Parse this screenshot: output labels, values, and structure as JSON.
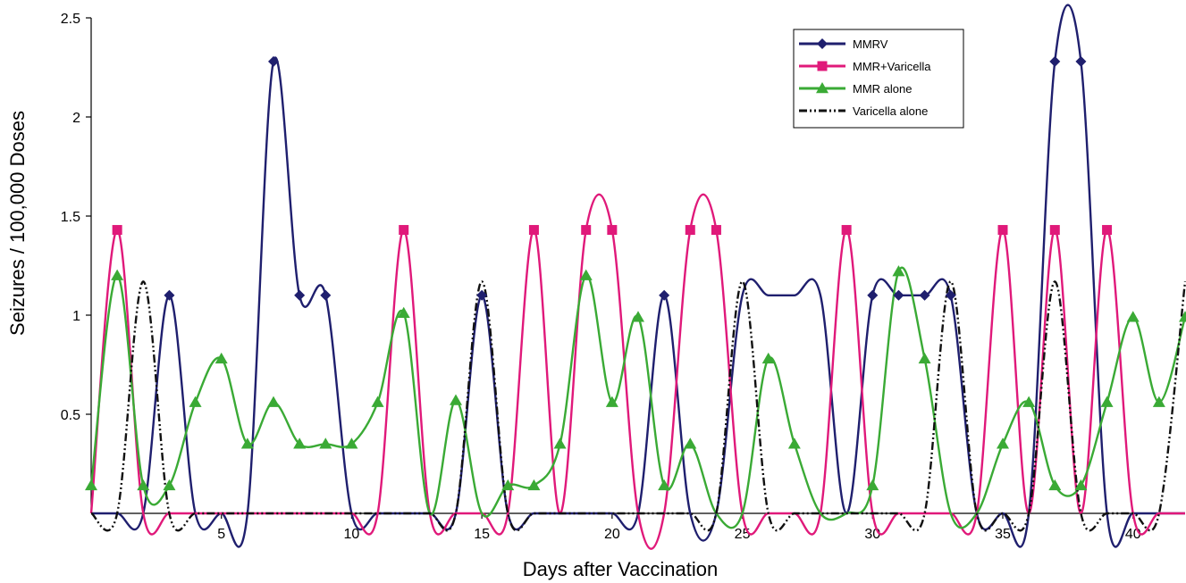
{
  "chart_data": {
    "type": "line",
    "title": "",
    "xlabel": "Days after Vaccination",
    "ylabel": "Seizures / 100,000 Doses",
    "xlim": [
      0,
      42
    ],
    "ylim": [
      0,
      2.5
    ],
    "x_ticks": [
      5,
      10,
      15,
      20,
      25,
      30,
      35,
      40
    ],
    "x_tick_labels": [
      "5",
      "10",
      "15",
      "20",
      "25",
      "30",
      "35",
      "40"
    ],
    "y_ticks": [
      0.5,
      1,
      1.5,
      2,
      2.5
    ],
    "y_tick_labels": [
      "0.5",
      "1",
      "1.5",
      "2",
      "2.5"
    ],
    "grid": false,
    "legend_position": "top-right",
    "series": [
      {
        "name": "MMRV",
        "color": "#1f1f6e",
        "marker": "diamond",
        "x": [
          0,
          1,
          2,
          3,
          4,
          5,
          6,
          7,
          8,
          9,
          10,
          11,
          12,
          13,
          14,
          15,
          16,
          17,
          18,
          19,
          20,
          21,
          22,
          23,
          24,
          25,
          26,
          27,
          28,
          29,
          30,
          31,
          32,
          33,
          34,
          35,
          36,
          37,
          38,
          39,
          40,
          41,
          42
        ],
        "y": [
          0,
          0,
          0,
          1.1,
          0,
          0,
          0,
          2.28,
          1.1,
          1.1,
          0,
          0,
          0,
          0,
          0,
          1.1,
          0,
          0,
          0,
          0,
          0,
          0,
          1.1,
          0,
          0,
          1.1,
          1.1,
          1.1,
          1.1,
          0,
          1.1,
          1.1,
          1.1,
          1.1,
          0,
          0,
          0,
          2.28,
          2.28,
          0,
          0,
          0,
          0
        ],
        "markers_at": [
          3,
          7,
          8,
          9,
          15,
          22,
          30,
          31,
          32,
          33,
          37,
          38
        ]
      },
      {
        "name": "MMR+Varicella",
        "color": "#e0197a",
        "marker": "square",
        "x": [
          0,
          1,
          2,
          3,
          4,
          5,
          6,
          7,
          8,
          9,
          10,
          11,
          12,
          13,
          14,
          15,
          16,
          17,
          18,
          19,
          20,
          21,
          22,
          23,
          24,
          25,
          26,
          27,
          28,
          29,
          30,
          31,
          32,
          33,
          34,
          35,
          36,
          37,
          38,
          39,
          40,
          41,
          42
        ],
        "y": [
          0,
          1.43,
          0,
          0,
          0,
          0,
          0,
          0,
          0,
          0,
          0,
          0,
          1.43,
          0,
          0,
          0,
          0,
          1.43,
          0,
          1.43,
          1.43,
          0,
          0,
          1.43,
          1.43,
          0,
          0,
          0,
          0,
          1.43,
          0,
          0,
          0,
          0,
          0,
          1.43,
          0,
          1.43,
          0,
          1.43,
          0,
          0,
          0
        ],
        "markers_at": [
          1,
          12,
          17,
          19,
          20,
          23,
          24,
          29,
          35,
          37,
          39
        ]
      },
      {
        "name": "MMR alone",
        "color": "#3aaa35",
        "marker": "triangle",
        "x": [
          0,
          1,
          2,
          3,
          4,
          5,
          6,
          7,
          8,
          9,
          10,
          11,
          12,
          13,
          14,
          15,
          16,
          17,
          18,
          19,
          20,
          21,
          22,
          23,
          24,
          25,
          26,
          27,
          28,
          29,
          30,
          31,
          32,
          33,
          34,
          35,
          36,
          37,
          38,
          39,
          40,
          41,
          42
        ],
        "y": [
          0.14,
          1.2,
          0.14,
          0.14,
          0.56,
          0.78,
          0.35,
          0.56,
          0.35,
          0.35,
          0.35,
          0.56,
          1.01,
          0,
          0.57,
          0,
          0.14,
          0.14,
          0.35,
          1.2,
          0.56,
          0.99,
          0.14,
          0.35,
          0,
          0,
          0.78,
          0.35,
          0,
          0,
          0.14,
          1.22,
          0.78,
          0,
          0,
          0.35,
          0.56,
          0.14,
          0.14,
          0.56,
          0.99,
          0.56,
          0.99
        ],
        "markers_at": [
          0,
          1,
          2,
          3,
          4,
          5,
          6,
          7,
          8,
          9,
          10,
          11,
          12,
          14,
          16,
          17,
          18,
          19,
          20,
          21,
          22,
          23,
          26,
          27,
          30,
          31,
          32,
          35,
          36,
          37,
          38,
          39,
          40,
          41,
          42
        ]
      },
      {
        "name": "Varicella alone",
        "color": "#111111",
        "marker": "none",
        "dash": "dash-dot-dot",
        "x": [
          0,
          1,
          2,
          3,
          4,
          5,
          6,
          7,
          8,
          9,
          10,
          11,
          12,
          13,
          14,
          15,
          16,
          17,
          18,
          19,
          20,
          21,
          22,
          23,
          24,
          25,
          26,
          27,
          28,
          29,
          30,
          31,
          32,
          33,
          34,
          35,
          36,
          37,
          38,
          39,
          40,
          41,
          42
        ],
        "y": [
          0,
          0,
          1.17,
          0,
          0,
          0,
          0,
          0,
          0,
          0,
          0,
          0,
          0,
          0,
          0,
          1.17,
          0,
          0,
          0,
          0,
          0,
          0,
          0,
          0,
          0,
          1.17,
          0,
          0,
          0,
          0,
          0,
          0,
          0,
          1.17,
          0,
          0,
          0,
          1.17,
          0,
          0,
          0,
          0,
          1.17
        ],
        "markers_at": []
      }
    ]
  }
}
